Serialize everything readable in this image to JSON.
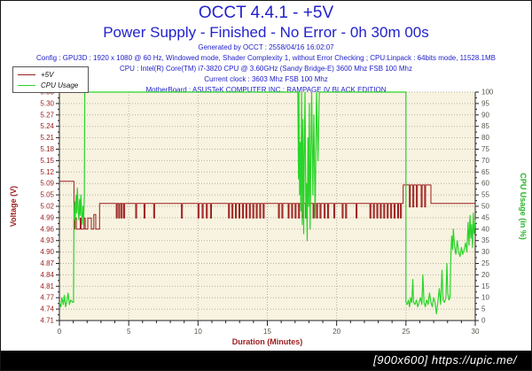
{
  "header": {
    "title": "OCCT 4.4.1 - +5V",
    "subtitle": "Power Supply - Finished - No Error - 0h 30m 00s",
    "text_color": "#2222cc",
    "meta": {
      "generated": "Generated by OCCT : 2558/04/16 16:02:07",
      "config": "Config : GPU3D : 1920 x 1080 @ 60 Hz, Windowed mode, Shader Complexity 1, without Error Checking ; CPU:Linpack : 64bits mode, 11528.1MB",
      "cpu": "CPU : Intel(R) Core(TM) i7-3820 CPU @ 3.60GHz (Sandy Bridge-E) 3600 Mhz FSB 100 Mhz",
      "clock": "Current clock : 3603 Mhz FSB 100 Mhz",
      "motherboard": "MotherBoard : ASUSTeK COMPUTER INC.: RAMPAGE IV BLACK EDITION"
    }
  },
  "legend": {
    "items": [
      {
        "label": "+5V",
        "color": "#9b1c1c"
      },
      {
        "label": "CPU Usage",
        "color": "#2ad42a"
      }
    ]
  },
  "footer": {
    "text": "[900x600] https://upic.me/",
    "bg": "#000000",
    "text_color": "#ffffff"
  },
  "chart_data": {
    "type": "line",
    "plot_bg": "#f8f3e0",
    "grid_color": "#b5b09b",
    "axis_line_color": "#222222",
    "x_axis": {
      "title": "Duration (Minutes)",
      "title_color": "#9b1c1c",
      "label_color": "#55554c",
      "range": [
        0,
        30
      ],
      "major_ticks": [
        0,
        5,
        10,
        15,
        20,
        25,
        30
      ],
      "minor_tick_interval": 1
    },
    "voltage_axis": {
      "title": "Voltage (V)",
      "color": "#9b1c1c",
      "range": [
        4.712,
        5.332
      ],
      "tick_labels": [
        "5.33",
        "5.30",
        "5.27",
        "5.24",
        "5.21",
        "5.18",
        "5.15",
        "5.12",
        "5.09",
        "5.05",
        "5.02",
        "4.99",
        "4.96",
        "4.93",
        "4.90",
        "4.87",
        "4.84",
        "4.81",
        "4.77",
        "4.74",
        "4.71"
      ]
    },
    "cpu_axis": {
      "title": "CPU Usage (in %)",
      "color": "#2ab42a",
      "label_color": "#55554c",
      "range": [
        0,
        100
      ],
      "tick_labels": [
        "100",
        "95",
        "90",
        "85",
        "80",
        "75",
        "70",
        "65",
        "60",
        "55",
        "50",
        "45",
        "40",
        "35",
        "30",
        "25",
        "20",
        "15",
        "10",
        "5",
        "0"
      ]
    },
    "series": [
      {
        "name": "+5V",
        "axis": "voltage",
        "color": "#9b1c1c",
        "base_points": [
          [
            0,
            5.09
          ],
          [
            1.05,
            5.09
          ],
          [
            1.05,
            4.96
          ],
          [
            1.12,
            4.96
          ],
          [
            1.12,
            4.99
          ],
          [
            1.22,
            4.99
          ],
          [
            1.22,
            4.96
          ],
          [
            1.5,
            4.96
          ],
          [
            1.5,
            4.99
          ],
          [
            1.56,
            4.99
          ],
          [
            1.56,
            4.96
          ],
          [
            1.78,
            4.96
          ],
          [
            1.78,
            4.99
          ],
          [
            1.86,
            4.99
          ],
          [
            1.86,
            4.96
          ],
          [
            2.05,
            4.96
          ],
          [
            2.05,
            4.99
          ],
          [
            2.3,
            4.99
          ],
          [
            2.3,
            4.96
          ],
          [
            2.48,
            4.96
          ],
          [
            2.48,
            5.0
          ],
          [
            2.62,
            5.0
          ],
          [
            2.62,
            4.96
          ],
          [
            2.9,
            4.96
          ],
          [
            2.9,
            5.03
          ],
          [
            24.8,
            5.03
          ],
          [
            24.8,
            5.08
          ],
          [
            26.8,
            5.08
          ],
          [
            26.8,
            5.03
          ],
          [
            30,
            5.03
          ]
        ],
        "dips": {
          "base": 5.03,
          "level": 4.99,
          "width": 0.07,
          "times": [
            4.1,
            4.28,
            4.46,
            4.64,
            5.5,
            6.1,
            6.8,
            8.8,
            10.0,
            10.3,
            10.6,
            10.9,
            12.2,
            12.45,
            12.7,
            12.95,
            13.2,
            13.45,
            13.7,
            13.95,
            14.2,
            14.45,
            14.7,
            15.8,
            16.05,
            16.5,
            16.75,
            17.0,
            17.25,
            17.5,
            17.75,
            18.3,
            18.55,
            18.8,
            19.1,
            19.35,
            19.8,
            20.4,
            20.65,
            21.4,
            22.4,
            22.65,
            22.9,
            23.15,
            23.4,
            23.65,
            23.9,
            24.15,
            24.4,
            24.6
          ]
        },
        "step_dips": {
          "base": 5.08,
          "level": 5.02,
          "width": 0.07,
          "times": [
            25.25,
            25.5,
            25.75,
            26.1,
            26.35
          ]
        }
      },
      {
        "name": "CPU Usage",
        "axis": "cpu",
        "color": "#2ad42a",
        "points": [
          [
            0,
            8
          ],
          [
            0.1,
            6
          ],
          [
            0.18,
            10
          ],
          [
            0.28,
            7
          ],
          [
            0.36,
            11
          ],
          [
            0.45,
            6
          ],
          [
            0.55,
            9
          ],
          [
            0.62,
            12
          ],
          [
            0.72,
            7
          ],
          [
            0.82,
            9
          ],
          [
            0.95,
            8
          ],
          [
            1.02,
            8
          ],
          [
            1.05,
            45
          ],
          [
            1.1,
            52
          ],
          [
            1.14,
            44
          ],
          [
            1.2,
            55
          ],
          [
            1.25,
            47
          ],
          [
            1.3,
            58
          ],
          [
            1.35,
            49
          ],
          [
            1.4,
            44
          ],
          [
            1.45,
            53
          ],
          [
            1.5,
            46
          ],
          [
            1.55,
            55
          ],
          [
            1.6,
            48
          ],
          [
            1.65,
            42
          ],
          [
            1.7,
            50
          ],
          [
            1.75,
            45
          ],
          [
            1.8,
            54
          ],
          [
            1.83,
            100
          ],
          [
            17.2,
            100
          ],
          [
            17.25,
            62
          ],
          [
            17.28,
            100
          ],
          [
            17.33,
            55
          ],
          [
            17.38,
            78
          ],
          [
            17.42,
            48
          ],
          [
            17.47,
            100
          ],
          [
            17.52,
            42
          ],
          [
            17.57,
            88
          ],
          [
            17.62,
            38
          ],
          [
            17.67,
            72
          ],
          [
            17.72,
            100
          ],
          [
            17.78,
            45
          ],
          [
            17.83,
            60
          ],
          [
            17.88,
            35
          ],
          [
            17.93,
            80
          ],
          [
            17.98,
            50
          ],
          [
            18.03,
            95
          ],
          [
            18.08,
            40
          ],
          [
            18.13,
            65
          ],
          [
            18.2,
            100
          ],
          [
            18.28,
            55
          ],
          [
            18.36,
            90
          ],
          [
            18.45,
            45
          ],
          [
            18.55,
            100
          ],
          [
            18.65,
            70
          ],
          [
            18.75,
            100
          ],
          [
            25.0,
            100
          ],
          [
            25.0,
            8
          ],
          [
            25.1,
            7
          ],
          [
            25.18,
            9
          ],
          [
            25.26,
            6
          ],
          [
            25.34,
            10
          ],
          [
            25.42,
            8
          ],
          [
            25.5,
            18
          ],
          [
            25.55,
            8
          ],
          [
            25.65,
            7
          ],
          [
            25.75,
            9
          ],
          [
            25.85,
            6
          ],
          [
            25.95,
            8
          ],
          [
            26.05,
            10
          ],
          [
            26.15,
            7
          ],
          [
            26.22,
            20
          ],
          [
            26.3,
            8
          ],
          [
            26.4,
            6
          ],
          [
            26.5,
            9
          ],
          [
            26.6,
            7
          ],
          [
            26.7,
            12
          ],
          [
            26.8,
            8
          ],
          [
            26.9,
            6
          ],
          [
            27.0,
            10
          ],
          [
            27.1,
            8
          ],
          [
            27.2,
            3
          ],
          [
            27.3,
            8
          ],
          [
            27.4,
            14
          ],
          [
            27.5,
            7
          ],
          [
            27.6,
            22
          ],
          [
            27.68,
            9
          ],
          [
            27.78,
            8
          ],
          [
            27.88,
            10
          ],
          [
            27.95,
            25
          ],
          [
            28.02,
            12
          ],
          [
            28.1,
            9
          ],
          [
            28.18,
            10
          ],
          [
            28.25,
            30
          ],
          [
            28.3,
            37
          ],
          [
            28.36,
            31
          ],
          [
            28.42,
            40
          ],
          [
            28.5,
            33
          ],
          [
            28.6,
            29
          ],
          [
            28.7,
            35
          ],
          [
            28.8,
            30
          ],
          [
            28.9,
            28
          ],
          [
            29.0,
            32
          ],
          [
            29.1,
            29
          ],
          [
            29.2,
            31
          ],
          [
            29.3,
            34
          ],
          [
            29.4,
            30
          ],
          [
            29.48,
            43
          ],
          [
            29.55,
            33
          ],
          [
            29.62,
            46
          ],
          [
            29.68,
            36
          ],
          [
            29.74,
            42
          ],
          [
            29.8,
            32
          ],
          [
            29.86,
            47
          ],
          [
            29.92,
            38
          ],
          [
            30,
            44
          ]
        ]
      }
    ]
  }
}
